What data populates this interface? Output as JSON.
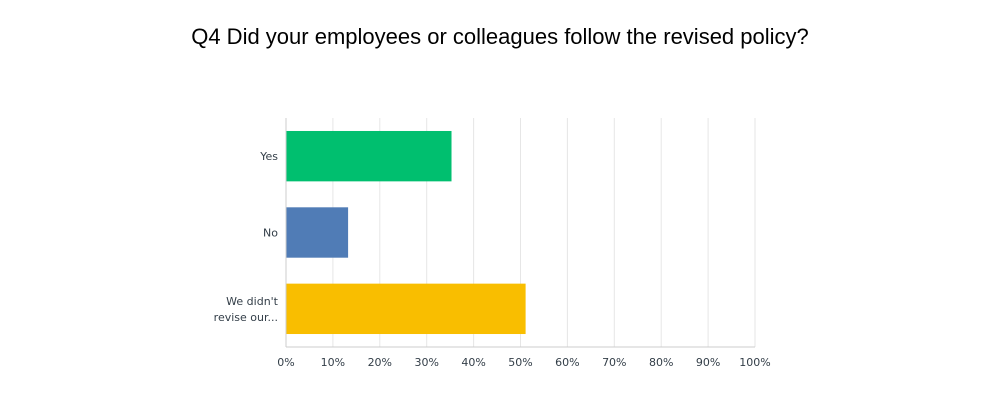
{
  "chart_data": {
    "type": "bar",
    "orientation": "horizontal",
    "title": "Q4 Did your employees or colleagues follow the revised policy?",
    "categories": [
      {
        "label_lines": [
          "Yes"
        ],
        "value": 35.29,
        "color": "#00bf6f"
      },
      {
        "label_lines": [
          "No"
        ],
        "value": 13.24,
        "color": "#507cb6"
      },
      {
        "label_lines": [
          "We didn't",
          "revise our..."
        ],
        "value": 51.09,
        "color": "#f9be00"
      }
    ],
    "xlim": [
      0,
      100
    ],
    "xticks": [
      "0%",
      "10%",
      "20%",
      "30%",
      "40%",
      "50%",
      "60%",
      "70%",
      "80%",
      "90%",
      "100%"
    ],
    "grid": true
  }
}
